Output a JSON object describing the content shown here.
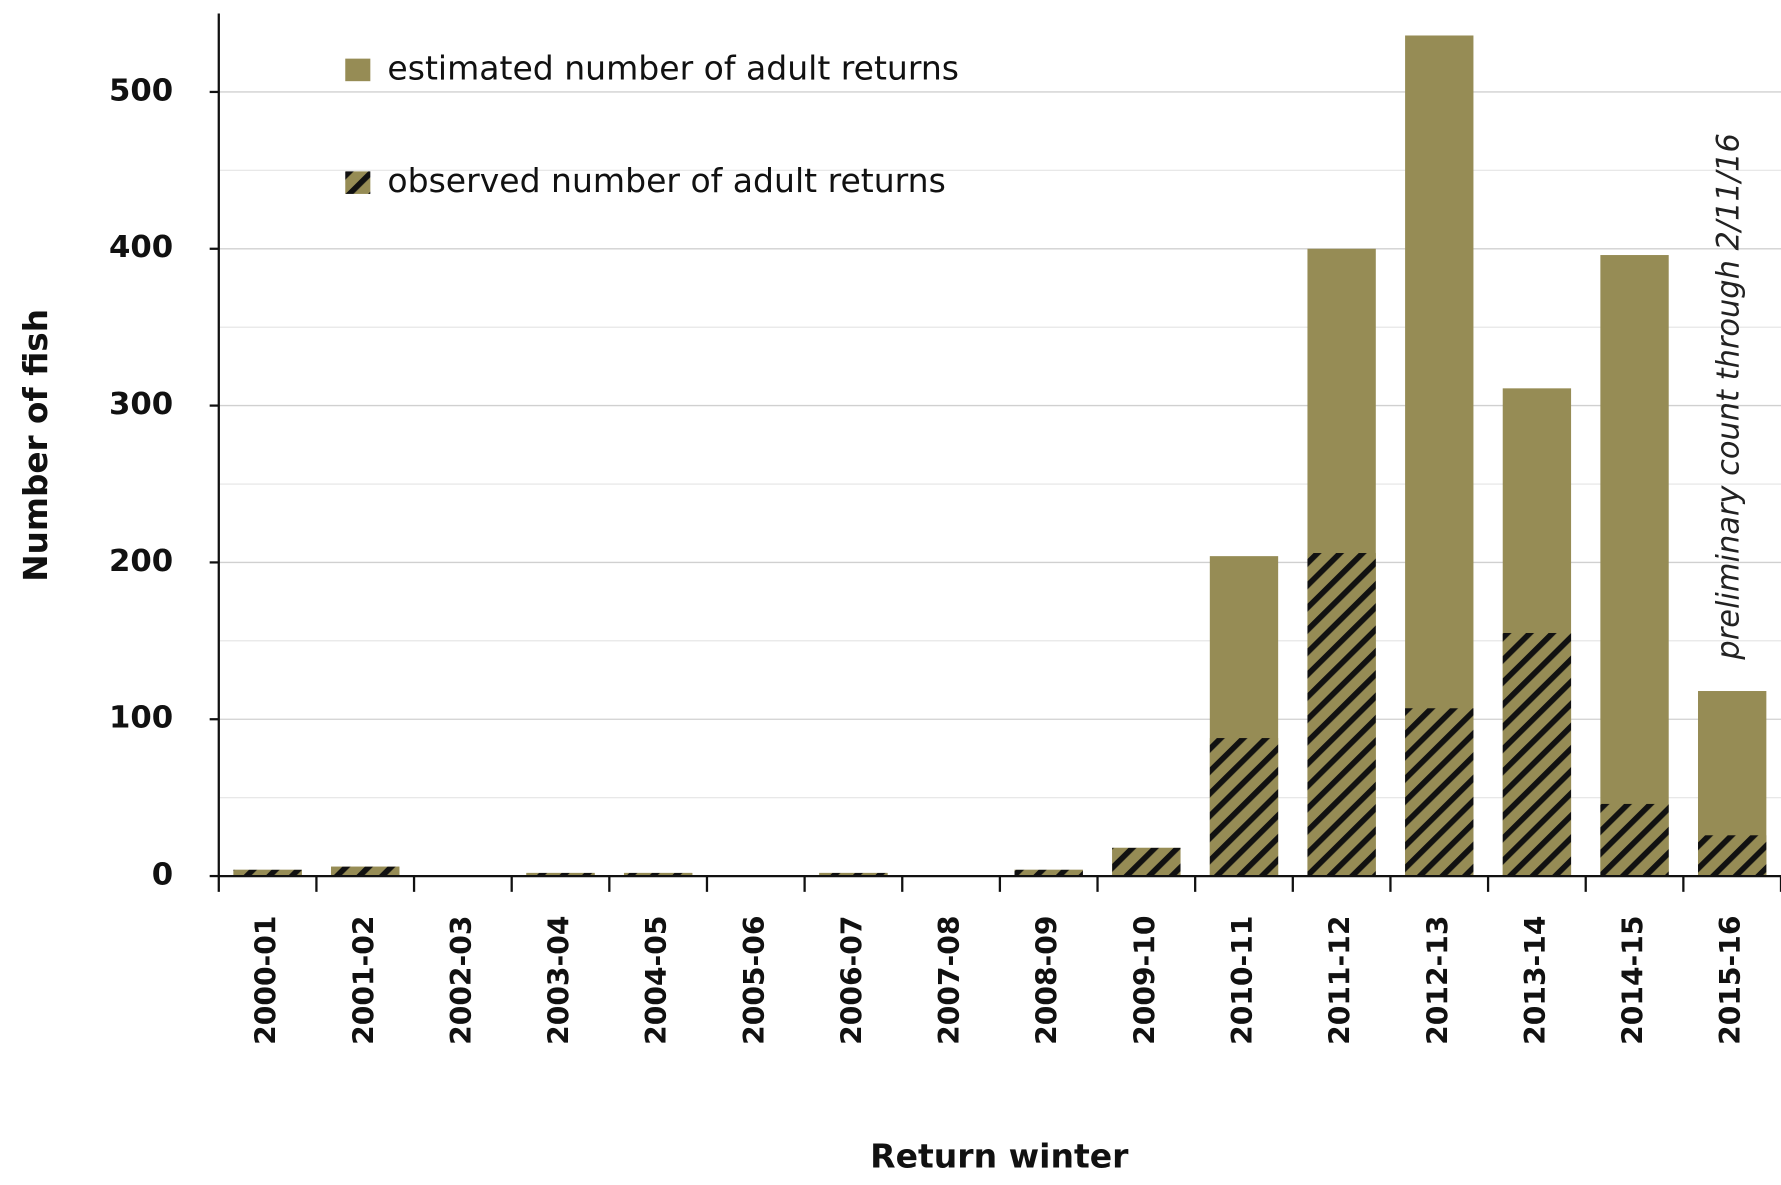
{
  "chart_data": {
    "type": "bar",
    "x_label": "Return winter",
    "y_label": "Number of fish",
    "annotation": "preliminary count through 2/11/16",
    "categories": [
      "2000-01",
      "2001-02",
      "2002-03",
      "2003-04",
      "2004-05",
      "2005-06",
      "2006-07",
      "2007-08",
      "2008-09",
      "2009-10",
      "2010-11",
      "2011-12",
      "2012-13",
      "2013-14",
      "2014-15",
      "2015-16"
    ],
    "series": [
      {
        "name": "estimated number of adult returns",
        "color": "#968c55",
        "hatch": false,
        "values": [
          4,
          6,
          0,
          2,
          2,
          0,
          2,
          0,
          4,
          18,
          204,
          400,
          536,
          311,
          396,
          118
        ]
      },
      {
        "name": "observed number of adult returns",
        "color": "#968c55",
        "hatch": true,
        "values": [
          4,
          6,
          0,
          2,
          2,
          0,
          2,
          0,
          4,
          18,
          88,
          206,
          107,
          155,
          46,
          26
        ]
      }
    ],
    "overlap": true,
    "ylim": [
      0,
      550
    ],
    "yticks": [
      0,
      100,
      200,
      300,
      400,
      500
    ],
    "minor_grid": [
      50,
      150,
      250,
      350,
      450
    ],
    "grid": true
  }
}
